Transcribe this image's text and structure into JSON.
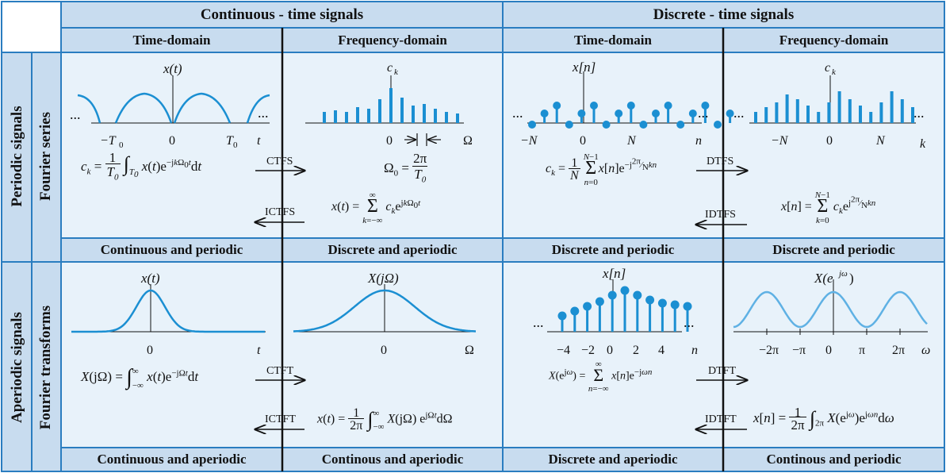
{
  "headers": {
    "continuous": "Continuous - time signals",
    "discrete": "Discrete - time signals",
    "time_domain": "Time-domain",
    "frequency_domain": "Frequency-domain"
  },
  "rows": {
    "periodic": "Periodic signals",
    "fourier_series": "Fourier series",
    "aperiodic": "Aperiodic signals",
    "fourier_transforms": "Fourier transforms"
  },
  "footers": {
    "p_ct_time": "Continuous and periodic",
    "p_ct_freq": "Discrete and aperiodic",
    "p_dt_time": "Discrete and periodic",
    "p_dt_freq": "Discrete and periodic",
    "a_ct_time": "Continuous and aperiodic",
    "a_ct_freq": "Continous and aperiodic",
    "a_dt_time": "Discrete and aperiodic",
    "a_dt_freq": "Continous and periodic"
  },
  "arrows": {
    "ctfs": "CTFS",
    "ictfs": "ICTFS",
    "dtfs": "DTFS",
    "idtfs": "IDTFS",
    "ctft": "CTFT",
    "ictft": "ICTFT",
    "dtft": "DTFT",
    "idtft": "IDTFT"
  },
  "plot_labels": {
    "xt": "x(t)",
    "ck": "c",
    "ck_sub": "k",
    "xn": "x[n]",
    "XjOmega": "X(jΩ)",
    "Xejw": "X(e",
    "Xejw_sup": "jω",
    "dots": "...",
    "minus_T0": "−T",
    "T0": "T",
    "zero_sub": "0",
    "zero": "0",
    "t": "t",
    "Omega": "Ω",
    "minus_N": "−N",
    "N": "N",
    "n": "n",
    "k": "k",
    "ticks_n": [
      "−4",
      "−2",
      "0",
      "2",
      "4"
    ],
    "ticks_w": [
      "−2π",
      "−π",
      "0",
      "π",
      "2π"
    ],
    "omega": "ω"
  },
  "equations": {
    "ct_fs_analysis": "c_k = (1/T0) ∫_T0 x(t) e^(−jkΩ0t) dt",
    "ct_fs_omega": "Ω0 = 2π / T0",
    "ct_fs_synthesis": "x(t) = Σ_{k=−∞}^{∞} c_k e^(jkΩ0t)",
    "dt_fs_analysis": "c_k = (1/N) Σ_{n=0}^{N−1} x[n] e^(−j(2π/N)kn)",
    "dt_fs_synthesis": "x[n] = Σ_{k=0}^{N−1} c_k e^(j(2π/N)kn)",
    "ct_ft_analysis": "X(jΩ) = ∫_{−∞}^{∞} x(t) e^(−jΩt) dt",
    "ct_ft_synthesis": "x(t) = (1/2π) ∫_{−∞}^{∞} X(jΩ) e^(jΩt) dΩ",
    "dt_ft_analysis": "X(e^jω) = Σ_{n=−∞}^{∞} x[n] e^(−jωn)",
    "dt_ft_synthesis": "x[n] = (1/2π) ∫_2π X(e^jω) e^(jωn) dω"
  },
  "colors": {
    "header_bg": "#c8dcef",
    "cell_bg": "#e8f2fa",
    "border": "#2a7dc0",
    "signal": "#1b8fd2",
    "signal_light": "#5fb1e4"
  }
}
